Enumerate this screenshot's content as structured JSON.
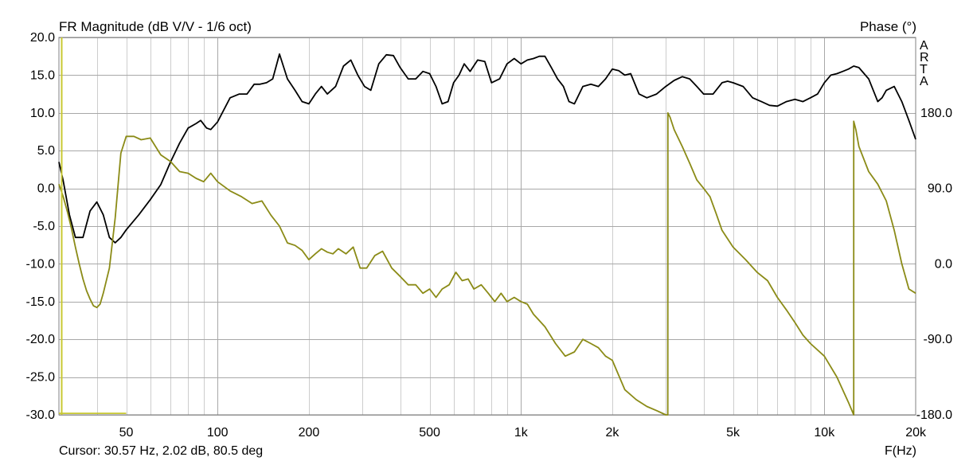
{
  "chart_data": {
    "type": "line",
    "title": "FR Magnitude (dB V/V - 1/6 oct)",
    "y2label": "Phase (°)",
    "xlabel": "F(Hz)",
    "brand": "ARTA",
    "cursor_text": "Cursor: 30.57 Hz, 2.02 dB, 80.5 deg",
    "x_scale": "log",
    "xlim": [
      30,
      20000
    ],
    "ylim": [
      -30,
      20
    ],
    "y2lim": [
      -180,
      270
    ],
    "grid": true,
    "colors": {
      "magnitude": "#000000",
      "phase": "#8b8b17",
      "cursor": "#c8c832"
    },
    "x_ticks": [
      {
        "value": 50,
        "label": "50"
      },
      {
        "value": 100,
        "label": "100"
      },
      {
        "value": 200,
        "label": "200"
      },
      {
        "value": 500,
        "label": "500"
      },
      {
        "value": 1000,
        "label": "1k"
      },
      {
        "value": 2000,
        "label": "2k"
      },
      {
        "value": 5000,
        "label": "5k"
      },
      {
        "value": 10000,
        "label": "10k"
      },
      {
        "value": 20000,
        "label": "20k"
      }
    ],
    "y_ticks": [
      {
        "value": 20,
        "label": "20.0"
      },
      {
        "value": 15,
        "label": "15.0"
      },
      {
        "value": 10,
        "label": "10.0"
      },
      {
        "value": 5,
        "label": "5.0"
      },
      {
        "value": 0,
        "label": "0.0"
      },
      {
        "value": -5,
        "label": "-5.0"
      },
      {
        "value": -10,
        "label": "-10.0"
      },
      {
        "value": -15,
        "label": "-15.0"
      },
      {
        "value": -20,
        "label": "-20.0"
      },
      {
        "value": -25,
        "label": "-25.0"
      },
      {
        "value": -30,
        "label": "-30.0"
      }
    ],
    "y2_ticks": [
      {
        "value": 180,
        "label": "180.0"
      },
      {
        "value": 90,
        "label": "90.0"
      },
      {
        "value": 0,
        "label": "0.0"
      },
      {
        "value": -90,
        "label": "-90.0"
      },
      {
        "value": -180,
        "label": "-180.0"
      }
    ],
    "cursor": {
      "x": 30.57,
      "y": 2.02,
      "phase": 80.5
    },
    "series": [
      {
        "axis": "left",
        "x": [
          30,
          31,
          32.5,
          34,
          36,
          38,
          40,
          42,
          44,
          46,
          48,
          50,
          55,
          60,
          65,
          70,
          75,
          80,
          85,
          88,
          92,
          95,
          100,
          110,
          118,
          125,
          132,
          138,
          145,
          152,
          160,
          170,
          180,
          190,
          200,
          210,
          220,
          230,
          245,
          260,
          275,
          290,
          305,
          320,
          340,
          360,
          380,
          400,
          425,
          450,
          475,
          500,
          525,
          550,
          575,
          600,
          625,
          650,
          680,
          720,
          760,
          800,
          850,
          900,
          950,
          1000,
          1050,
          1100,
          1150,
          1200,
          1260,
          1320,
          1380,
          1440,
          1500,
          1600,
          1700,
          1800,
          1900,
          2000,
          2100,
          2200,
          2300,
          2450,
          2600,
          2800,
          3000,
          3200,
          3400,
          3600,
          3800,
          4000,
          4300,
          4600,
          4800,
          5000,
          5400,
          5800,
          6200,
          6600,
          7000,
          7500,
          8000,
          8500,
          9000,
          9500,
          10000,
          10500,
          11000,
          11500,
          12000,
          12500,
          13000,
          14000,
          15000,
          15500,
          16000,
          17000,
          18000,
          19000,
          20000
        ],
        "values": [
          3.5,
          1.0,
          -3.5,
          -6.5,
          -6.5,
          -3.0,
          -1.8,
          -3.5,
          -6.5,
          -7.2,
          -6.5,
          -5.5,
          -3.5,
          -1.5,
          0.5,
          3.5,
          6.0,
          8.0,
          8.6,
          9.0,
          8.0,
          7.8,
          8.8,
          12.0,
          12.5,
          12.5,
          13.8,
          13.8,
          14.0,
          14.5,
          17.8,
          14.5,
          13.0,
          11.5,
          11.2,
          12.5,
          13.5,
          12.5,
          13.5,
          16.2,
          17.0,
          15.0,
          13.5,
          13.0,
          16.5,
          17.7,
          17.6,
          16.0,
          14.5,
          14.5,
          15.5,
          15.2,
          13.5,
          11.2,
          11.5,
          14.0,
          15.0,
          16.5,
          15.5,
          17.0,
          16.8,
          14.0,
          14.5,
          16.5,
          17.2,
          16.5,
          17.0,
          17.2,
          17.5,
          17.5,
          16.0,
          14.5,
          13.5,
          11.5,
          11.2,
          13.5,
          13.8,
          13.5,
          14.5,
          15.8,
          15.6,
          15.0,
          15.2,
          12.5,
          12.0,
          12.5,
          13.5,
          14.3,
          14.8,
          14.5,
          13.5,
          12.5,
          12.5,
          14.0,
          14.2,
          14.0,
          13.5,
          12.0,
          11.5,
          11.0,
          10.9,
          11.5,
          11.8,
          11.5,
          12.0,
          12.5,
          14.0,
          15.0,
          15.2,
          15.5,
          15.8,
          16.2,
          16.0,
          14.5,
          11.5,
          12.0,
          13.0,
          13.5,
          11.5,
          9.0,
          6.5
        ]
      },
      {
        "axis": "right",
        "x": [
          30,
          31,
          32,
          33,
          34,
          35,
          36,
          37,
          38,
          39,
          40,
          41,
          42,
          44,
          46,
          48,
          50,
          53,
          56,
          60,
          65,
          70,
          75,
          80,
          85,
          90,
          95,
          100,
          110,
          120,
          130,
          140,
          150,
          160,
          170,
          180,
          190,
          200,
          210,
          220,
          230,
          240,
          250,
          265,
          280,
          295,
          310,
          330,
          350,
          375,
          400,
          425,
          450,
          475,
          500,
          525,
          550,
          580,
          610,
          640,
          670,
          700,
          740,
          780,
          820,
          860,
          900,
          950,
          1000,
          1050,
          1100,
          1200,
          1300,
          1400,
          1500,
          1600,
          1700,
          1800,
          1900,
          2000,
          2200,
          2400,
          2600,
          2800,
          3000,
          3049,
          3050,
          3100,
          3200,
          3400,
          3600,
          3800,
          4000,
          4200,
          4400,
          4600,
          5000,
          5500,
          6000,
          6500,
          7000,
          7500,
          8000,
          8500,
          9000,
          10000,
          11000,
          12000,
          12499,
          12500,
          12700,
          13000,
          14000,
          15000,
          16000,
          17000,
          18000,
          19000,
          20000
        ],
        "values": [
          95,
          80,
          62,
          42,
          20,
          0,
          -18,
          -32,
          -42,
          -50,
          -52,
          -48,
          -35,
          -5,
          55,
          132,
          152,
          152,
          148,
          150,
          130,
          122,
          110,
          108,
          102,
          98,
          108,
          98,
          87,
          80,
          72,
          75,
          58,
          45,
          25,
          22,
          16,
          5,
          12,
          18,
          14,
          12,
          18,
          12,
          20,
          -5,
          -5,
          10,
          15,
          -5,
          -15,
          -25,
          -25,
          -35,
          -30,
          -40,
          -30,
          -25,
          -10,
          -20,
          -18,
          -30,
          -25,
          -35,
          -45,
          -35,
          -45,
          -40,
          -45,
          -48,
          -60,
          -75,
          -95,
          -110,
          -105,
          -90,
          -95,
          -100,
          -110,
          -115,
          -150,
          -162,
          -170,
          -175,
          -180,
          -180,
          180,
          175,
          160,
          140,
          120,
          100,
          90,
          80,
          60,
          40,
          20,
          5,
          -10,
          -20,
          -40,
          -55,
          -70,
          -85,
          -95,
          -110,
          -135,
          -165,
          -180,
          170,
          160,
          140,
          110,
          95,
          75,
          40,
          0,
          -30,
          -35
        ]
      },
      {
        "axis": "left",
        "x": [
          30,
          50
        ],
        "values": [
          -29.8,
          -29.8
        ]
      }
    ]
  }
}
